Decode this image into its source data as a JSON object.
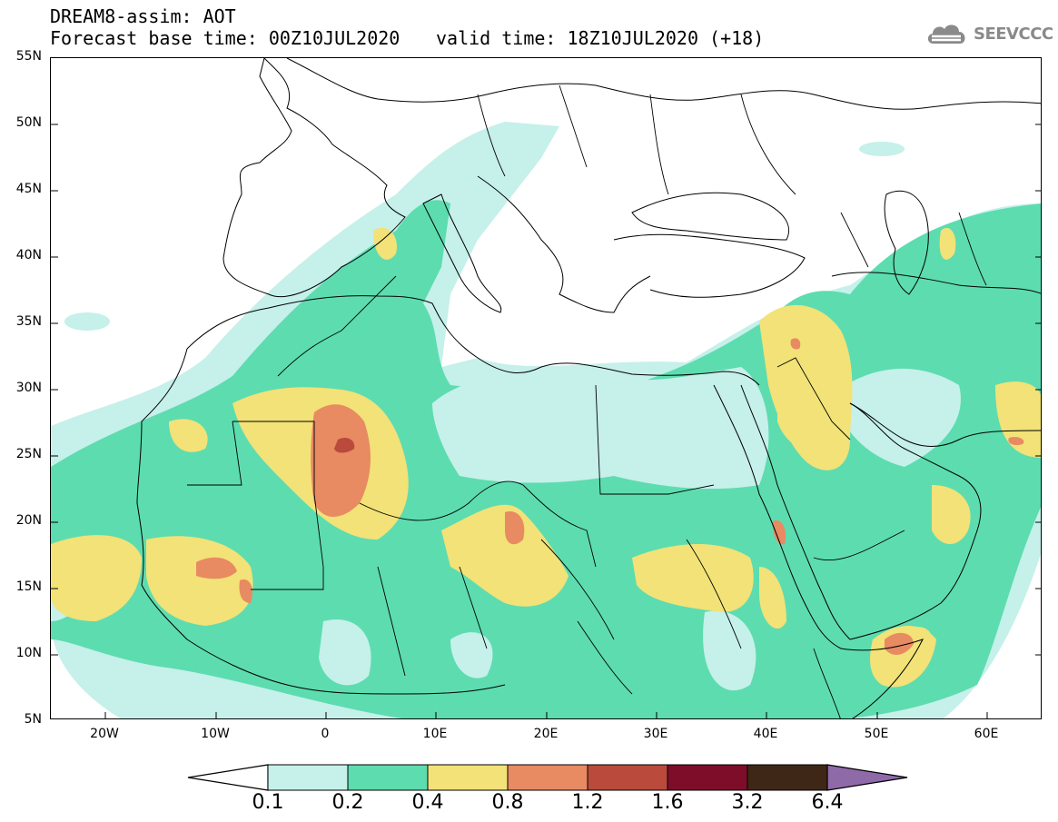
{
  "header": {
    "title": "DREAM8-assim: AOT",
    "base_time": "Forecast base time: 00Z10JUL2020",
    "valid_time": "valid time: 18Z10JUL2020 (+18)"
  },
  "logo": {
    "icon": "cloud-icon",
    "text": "SEEVCCC"
  },
  "map": {
    "lat_labels": [
      "55N",
      "50N",
      "45N",
      "40N",
      "35N",
      "30N",
      "25N",
      "20N",
      "15N",
      "10N",
      "5N"
    ],
    "lon_labels": [
      "20W",
      "10W",
      "0",
      "10E",
      "20E",
      "30E",
      "40E",
      "50E",
      "60E"
    ],
    "lon_range": [
      -25,
      65
    ],
    "lat_range": [
      5,
      55
    ]
  },
  "colorbar": {
    "labels": [
      "0.1",
      "0.2",
      "0.4",
      "0.8",
      "1.2",
      "1.6",
      "3.2",
      "6.4"
    ],
    "colors": [
      "#c6f0ea",
      "#5ddcb0",
      "#f2e277",
      "#e88a62",
      "#b94a3c",
      "#7e0d2a",
      "#3f2717",
      "#8f6aa8"
    ]
  }
}
